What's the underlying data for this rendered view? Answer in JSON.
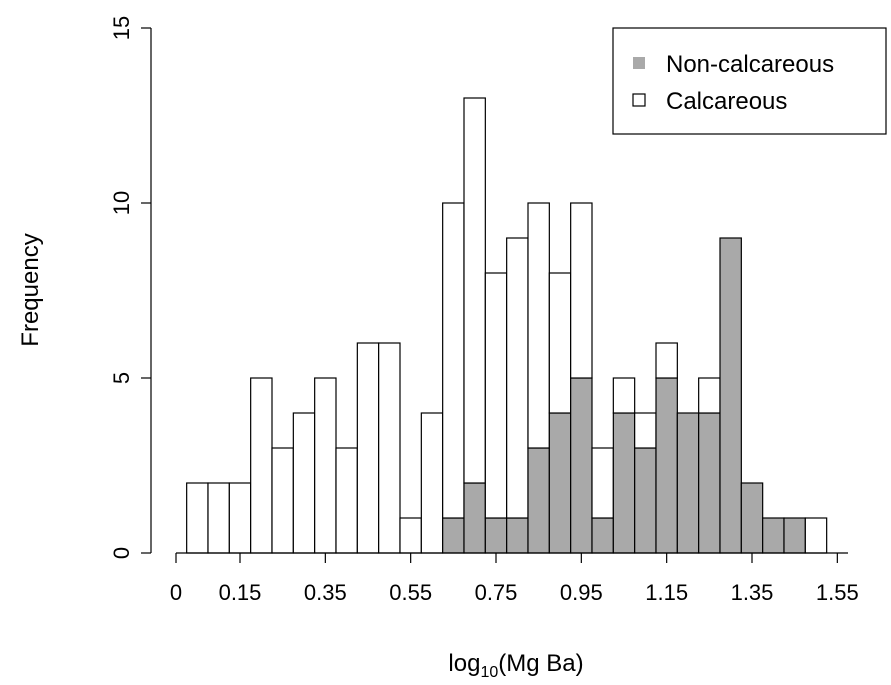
{
  "chart_data": {
    "type": "bar",
    "stacked": true,
    "xlabel": {
      "base": "log",
      "subscript": "10",
      "rest": "(Mg Ba)"
    },
    "ylabel": "Frequency",
    "ylim": [
      0,
      15
    ],
    "yticks": [
      "0",
      "5",
      "10",
      "15"
    ],
    "xlim": [
      0,
      1.575
    ],
    "bin_width": 0.05,
    "xtick_values": [
      0,
      0.15,
      0.35,
      0.55,
      0.75,
      0.95,
      1.15,
      1.35,
      1.55
    ],
    "xtick_labels": [
      "0",
      "0.15",
      "0.35",
      "0.55",
      "0.75",
      "0.95",
      "1.15",
      "1.35",
      "1.55"
    ],
    "bins": [
      0.05,
      0.1,
      0.15,
      0.2,
      0.25,
      0.3,
      0.35,
      0.4,
      0.45,
      0.5,
      0.55,
      0.6,
      0.65,
      0.7,
      0.75,
      0.8,
      0.85,
      0.9,
      0.95,
      1.0,
      1.05,
      1.1,
      1.15,
      1.2,
      1.25,
      1.3,
      1.35,
      1.4,
      1.45,
      1.5
    ],
    "series": [
      {
        "name": "Non-calcareous",
        "color": "#a9a9a9",
        "values": [
          0,
          0,
          0,
          0,
          0,
          0,
          0,
          0,
          0,
          0,
          0,
          0,
          1,
          2,
          1,
          1,
          3,
          4,
          5,
          1,
          4,
          3,
          5,
          4,
          4,
          9,
          2,
          1,
          1,
          0
        ]
      },
      {
        "name": "Calcareous",
        "color": "#ffffff",
        "values": [
          2,
          2,
          2,
          5,
          3,
          4,
          5,
          3,
          6,
          6,
          1,
          4,
          9,
          11,
          7,
          8,
          7,
          4,
          5,
          2,
          1,
          1,
          1,
          0,
          1,
          0,
          0,
          0,
          0,
          1
        ]
      }
    ],
    "legend_position": "top-right",
    "grid": false
  }
}
